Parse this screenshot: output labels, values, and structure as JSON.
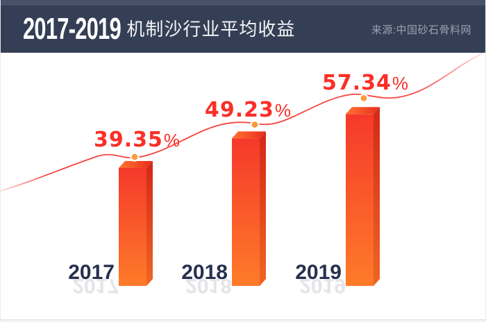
{
  "header": {
    "title_range": "2017-2019",
    "title": "机制沙行业平均收益",
    "source": "来源:中国砂石骨料网"
  },
  "chart_data": {
    "type": "bar",
    "title": "2017-2019 机制沙行业平均收益",
    "xlabel": "",
    "ylabel": "",
    "unit": "%",
    "ylim": [
      0,
      65
    ],
    "grid": false,
    "legend": "none",
    "axes_visible": false,
    "categories": [
      "2017",
      "2018",
      "2019"
    ],
    "values": [
      39.35,
      49.23,
      57.34
    ],
    "points": [
      {
        "year": "2017",
        "value": 39.35,
        "label": "39.35",
        "suffix": "%"
      },
      {
        "year": "2018",
        "value": 49.23,
        "label": "49.23",
        "suffix": "%"
      },
      {
        "year": "2019",
        "value": 57.34,
        "label": "57.34",
        "suffix": "%"
      }
    ],
    "colors": {
      "bar_front_top": "#f5392b",
      "bar_front_bottom": "#fe7b29",
      "bar_side_top": "#d22818",
      "bar_side_bottom": "#f06524",
      "bar_top_left": "#ff7430",
      "bar_top_right": "#e72e1e",
      "trend_line": "#f6453e",
      "dot_fill": "#ff9a3c",
      "dot_ring": "#ffffff",
      "value_label": "#fb2f27",
      "year_label": "#27304f",
      "header_bg": "#343f55",
      "header_strip": "#47516a",
      "source_text": "#9aa2b2"
    }
  }
}
